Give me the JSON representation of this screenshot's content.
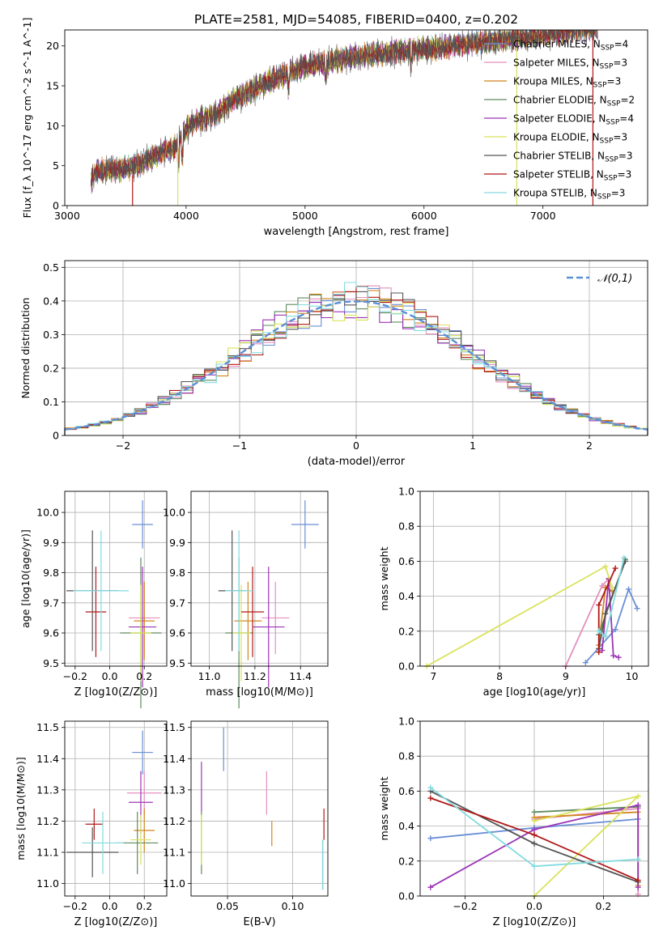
{
  "title": "PLATE=2581, MJD=54085, FIBERID=0400, z=0.202",
  "legend": [
    {
      "label": "Chabrier MILES, N$_{SSP}$=4",
      "prefix": "Chabrier MILES, N",
      "sub": "SSP",
      "suffix": "=4",
      "color": "#6a8fd6"
    },
    {
      "label": "Salpeter MILES, N$_{SSP}$=3",
      "prefix": "Salpeter MILES, N",
      "sub": "SSP",
      "suffix": "=3",
      "color": "#e48fbf"
    },
    {
      "label": "Kroupa MILES, N$_{SSP}$=3",
      "prefix": "Kroupa MILES, N",
      "sub": "SSP",
      "suffix": "=3",
      "color": "#d2851f"
    },
    {
      "label": "Chabrier ELODIE, N$_{SSP}$=2",
      "prefix": "Chabrier ELODIE, N",
      "sub": "SSP",
      "suffix": "=2",
      "color": "#5f8a5f"
    },
    {
      "label": "Salpeter ELODIE, N$_{SSP}$=4",
      "prefix": "Salpeter ELODIE, N",
      "sub": "SSP",
      "suffix": "=4",
      "color": "#9b34b5"
    },
    {
      "label": "Kroupa ELODIE, N$_{SSP}$=3",
      "prefix": "Kroupa ELODIE, N",
      "sub": "SSP",
      "suffix": "=3",
      "color": "#d9e25a"
    },
    {
      "label": "Chabrier STELIB, N$_{SSP}$=3",
      "prefix": "Chabrier STELIB, N",
      "sub": "SSP",
      "suffix": "=3",
      "color": "#555555"
    },
    {
      "label": "Salpeter STELIB, N$_{SSP}$=3",
      "prefix": "Salpeter STELIB, N",
      "sub": "SSP",
      "suffix": "=3",
      "color": "#b01717"
    },
    {
      "label": "Kroupa STELIB, N$_{SSP}$=3",
      "prefix": "Kroupa STELIB, N",
      "sub": "SSP",
      "suffix": "=3",
      "color": "#83dbe0"
    }
  ],
  "chart_data": [
    {
      "id": "spectrum",
      "type": "line",
      "xlabel": "wavelength [Angstrom, rest frame]",
      "ylabel": "Flux [f_λ 10^-17 erg cm^-2 s^-1 A^-1]",
      "xlim": [
        2980,
        7880
      ],
      "ylim": [
        0,
        22
      ],
      "xticks": [
        3000,
        4000,
        5000,
        6000,
        7000
      ],
      "yticks": [
        0,
        5,
        10,
        15,
        20
      ],
      "grid": false,
      "legend_position": "top-right",
      "continuum": [
        [
          3200,
          3.2
        ],
        [
          3250,
          4.3
        ],
        [
          3400,
          4.5
        ],
        [
          3550,
          4.8
        ],
        [
          3700,
          6.0
        ],
        [
          3800,
          6.8
        ],
        [
          3900,
          7.2
        ],
        [
          4000,
          9.5
        ],
        [
          4100,
          10.8
        ],
        [
          4200,
          11.0
        ],
        [
          4300,
          12.0
        ],
        [
          4400,
          13.2
        ],
        [
          4500,
          14.0
        ],
        [
          4600,
          14.8
        ],
        [
          4700,
          15.6
        ],
        [
          4800,
          16.2
        ],
        [
          4900,
          16.8
        ],
        [
          5000,
          17.5
        ],
        [
          5200,
          18.0
        ],
        [
          5400,
          18.6
        ],
        [
          5600,
          19.0
        ],
        [
          5800,
          19.3
        ],
        [
          6000,
          19.6
        ],
        [
          6200,
          19.9
        ],
        [
          6400,
          20.3
        ],
        [
          6600,
          20.7
        ],
        [
          6800,
          21.0
        ],
        [
          7000,
          21.3
        ],
        [
          7200,
          21.8
        ],
        [
          7450,
          22.2
        ]
      ],
      "dips": [
        [
          3550,
          "#b01717"
        ],
        [
          3930,
          "#d9e25a"
        ],
        [
          6780,
          "#d9e25a"
        ],
        [
          7420,
          "#b01717"
        ]
      ]
    },
    {
      "id": "residuals",
      "type": "histogram",
      "xlabel": "(data-model)/error",
      "ylabel": "Normed distribution",
      "xlim": [
        -2.5,
        2.5
      ],
      "ylim": [
        0,
        0.52
      ],
      "xticks": [
        -2,
        -1,
        0,
        1,
        2
      ],
      "yticks": [
        0,
        0.1,
        0.2,
        0.3,
        0.4,
        0.5
      ],
      "grid": true,
      "bins": {
        "start": -2.5,
        "width": 0.1,
        "count": 50
      },
      "reference": {
        "label": "𝒩(0,1)",
        "mean": 0,
        "sigma": 1,
        "color": "#5b8fd6"
      }
    },
    {
      "id": "age_vs_Z",
      "type": "errorbar",
      "xlabel": "Z [log10(Z/Z⊙)]",
      "ylabel": "age [log10(age/yr)]",
      "xlim": [
        -0.26,
        0.33
      ],
      "ylim": [
        9.49,
        10.07
      ],
      "xticks": [
        -0.2,
        0,
        0.2
      ],
      "xticklabels": [
        "−0.2",
        "0.0",
        "0.2"
      ],
      "yticks": [
        9.5,
        9.6,
        9.7,
        9.8,
        9.9,
        10.0
      ],
      "grid": true,
      "points": [
        {
          "x": 0.19,
          "y": 9.96,
          "xerr": 0.06,
          "yerr": 0.08,
          "color": "#6a8fd6"
        },
        {
          "x": 0.2,
          "y": 9.65,
          "xerr": 0.09,
          "yerr": 0.12,
          "color": "#e48fbf"
        },
        {
          "x": 0.2,
          "y": 9.64,
          "xerr": 0.06,
          "yerr": 0.13,
          "color": "#d2851f"
        },
        {
          "x": 0.18,
          "y": 9.6,
          "xerr": 0.12,
          "yerr": 0.25,
          "color": "#5f8a5f"
        },
        {
          "x": 0.19,
          "y": 9.62,
          "xerr": 0.08,
          "yerr": 0.2,
          "color": "#9b34b5"
        },
        {
          "x": 0.18,
          "y": 9.6,
          "xerr": 0.06,
          "yerr": 0.16,
          "color": "#d9e25a"
        },
        {
          "x": -0.1,
          "y": 9.74,
          "xerr": 0.15,
          "yerr": 0.2,
          "color": "#555555"
        },
        {
          "x": -0.08,
          "y": 9.67,
          "xerr": 0.06,
          "yerr": 0.15,
          "color": "#b01717"
        },
        {
          "x": -0.05,
          "y": 9.74,
          "xerr": 0.16,
          "yerr": 0.2,
          "color": "#83dbe0"
        }
      ]
    },
    {
      "id": "age_vs_mass",
      "type": "errorbar",
      "xlabel": "mass [log10(M/M⊙)]",
      "ylabel": "",
      "xlim": [
        10.92,
        11.52
      ],
      "ylim": [
        9.49,
        10.07
      ],
      "xticks": [
        11.0,
        11.2,
        11.4
      ],
      "xticklabels": [
        "11.0",
        "11.2",
        "11.4"
      ],
      "yticks": [
        9.5,
        9.6,
        9.7,
        9.8,
        9.9,
        10.0
      ],
      "grid": true,
      "points": [
        {
          "x": 11.42,
          "y": 9.96,
          "xerr": 0.06,
          "yerr": 0.08,
          "color": "#6a8fd6"
        },
        {
          "x": 11.29,
          "y": 9.65,
          "xerr": 0.06,
          "yerr": 0.12,
          "color": "#e48fbf"
        },
        {
          "x": 11.17,
          "y": 9.64,
          "xerr": 0.06,
          "yerr": 0.13,
          "color": "#d2851f"
        },
        {
          "x": 11.13,
          "y": 9.6,
          "xerr": 0.06,
          "yerr": 0.25,
          "color": "#5f8a5f"
        },
        {
          "x": 11.26,
          "y": 9.62,
          "xerr": 0.07,
          "yerr": 0.2,
          "color": "#9b34b5"
        },
        {
          "x": 11.14,
          "y": 9.6,
          "xerr": 0.04,
          "yerr": 0.16,
          "color": "#d9e25a"
        },
        {
          "x": 11.1,
          "y": 9.74,
          "xerr": 0.06,
          "yerr": 0.2,
          "color": "#555555"
        },
        {
          "x": 11.19,
          "y": 9.67,
          "xerr": 0.05,
          "yerr": 0.15,
          "color": "#b01717"
        },
        {
          "x": 11.13,
          "y": 9.74,
          "xerr": 0.06,
          "yerr": 0.2,
          "color": "#83dbe0"
        }
      ]
    },
    {
      "id": "weight_vs_age",
      "type": "line",
      "xlabel": "age [log10(age/yr)]",
      "ylabel": "mass weight",
      "xlim": [
        6.8,
        10.25
      ],
      "ylim": [
        0,
        1
      ],
      "xticks": [
        7,
        8,
        9,
        10
      ],
      "yticks": [
        0,
        0.2,
        0.4,
        0.6,
        0.8,
        1.0
      ],
      "grid": true,
      "series": [
        {
          "color": "#6a8fd6",
          "points": [
            [
              9.3,
              0.02
            ],
            [
              9.75,
              0.21
            ],
            [
              9.95,
              0.44
            ],
            [
              10.08,
              0.33
            ]
          ]
        },
        {
          "color": "#e48fbf",
          "points": [
            [
              9.0,
              0.0
            ],
            [
              9.55,
              0.46
            ],
            [
              9.65,
              0.5
            ]
          ]
        },
        {
          "color": "#d2851f",
          "points": [
            [
              9.5,
              0.12
            ],
            [
              9.6,
              0.45
            ],
            [
              9.7,
              0.43
            ]
          ]
        },
        {
          "color": "#5f8a5f",
          "points": [
            [
              9.5,
              0.18
            ],
            [
              9.9,
              0.61
            ]
          ]
        },
        {
          "color": "#9b34b5",
          "points": [
            [
              9.55,
              0.09
            ],
            [
              9.65,
              0.5
            ],
            [
              9.72,
              0.06
            ],
            [
              9.8,
              0.05
            ]
          ]
        },
        {
          "color": "#d9e25a",
          "points": [
            [
              6.9,
              0.0
            ],
            [
              9.6,
              0.57
            ],
            [
              9.7,
              0.45
            ]
          ]
        },
        {
          "color": "#555555",
          "points": [
            [
              9.5,
              0.1
            ],
            [
              9.6,
              0.3
            ],
            [
              9.9,
              0.6
            ]
          ]
        },
        {
          "color": "#b01717",
          "points": [
            [
              9.5,
              0.08
            ],
            [
              9.5,
              0.35
            ],
            [
              9.75,
              0.56
            ]
          ]
        },
        {
          "color": "#83dbe0",
          "points": [
            [
              9.5,
              0.2
            ],
            [
              9.6,
              0.17
            ],
            [
              9.88,
              0.62
            ]
          ]
        }
      ]
    },
    {
      "id": "mass_vs_Z",
      "type": "errorbar",
      "xlabel": "Z [log10(Z/Z⊙)]",
      "ylabel": "mass [log10(M/M⊙)]",
      "xlim": [
        -0.26,
        0.33
      ],
      "ylim": [
        10.96,
        11.52
      ],
      "xticks": [
        -0.2,
        0,
        0.2
      ],
      "xticklabels": [
        "−0.2",
        "0.0",
        "0.2"
      ],
      "yticks": [
        11.0,
        11.1,
        11.2,
        11.3,
        11.4,
        11.5
      ],
      "grid": true,
      "points": [
        {
          "x": 0.19,
          "y": 11.42,
          "xerr": 0.06,
          "yerr": 0.07,
          "color": "#6a8fd6"
        },
        {
          "x": 0.2,
          "y": 11.29,
          "xerr": 0.1,
          "yerr": 0.07,
          "color": "#e48fbf"
        },
        {
          "x": 0.2,
          "y": 11.17,
          "xerr": 0.06,
          "yerr": 0.07,
          "color": "#d2851f"
        },
        {
          "x": 0.16,
          "y": 11.13,
          "xerr": 0.12,
          "yerr": 0.1,
          "color": "#5f8a5f"
        },
        {
          "x": 0.18,
          "y": 11.26,
          "xerr": 0.07,
          "yerr": 0.1,
          "color": "#9b34b5"
        },
        {
          "x": 0.18,
          "y": 11.14,
          "xerr": 0.06,
          "yerr": 0.08,
          "color": "#d9e25a"
        },
        {
          "x": -0.1,
          "y": 11.1,
          "xerr": 0.15,
          "yerr": 0.08,
          "color": "#555555"
        },
        {
          "x": -0.09,
          "y": 11.19,
          "xerr": 0.05,
          "yerr": 0.05,
          "color": "#b01717"
        },
        {
          "x": -0.04,
          "y": 11.13,
          "xerr": 0.12,
          "yerr": 0.1,
          "color": "#83dbe0"
        }
      ]
    },
    {
      "id": "mass_vs_EBV",
      "type": "errorbar",
      "xlabel": "E(B-V)",
      "ylabel": "",
      "xlim": [
        0.022,
        0.127
      ],
      "ylim": [
        10.96,
        11.52
      ],
      "xticks": [
        0.05,
        0.1
      ],
      "xticklabels": [
        "0.05",
        "0.10"
      ],
      "yticks": [
        11.0,
        11.1,
        11.2,
        11.3,
        11.4,
        11.5
      ],
      "grid": true,
      "points": [
        {
          "x": 0.047,
          "y": 11.43,
          "xerr": 0,
          "yerr": 0.07,
          "color": "#6a8fd6"
        },
        {
          "x": 0.08,
          "y": 11.29,
          "xerr": 0,
          "yerr": 0.07,
          "color": "#e48fbf"
        },
        {
          "x": 0.084,
          "y": 11.16,
          "xerr": 0,
          "yerr": 0.04,
          "color": "#d2851f"
        },
        {
          "x": 0.03,
          "y": 11.13,
          "xerr": 0,
          "yerr": 0.1,
          "color": "#5f8a5f"
        },
        {
          "x": 0.03,
          "y": 11.31,
          "xerr": 0,
          "yerr": 0.08,
          "color": "#9b34b5"
        },
        {
          "x": 0.03,
          "y": 11.14,
          "xerr": 0,
          "yerr": 0.08,
          "color": "#d9e25a"
        },
        {
          "x": 0.123,
          "y": 11.06,
          "xerr": 0,
          "yerr": 0.08,
          "color": "#555555"
        },
        {
          "x": 0.124,
          "y": 11.19,
          "xerr": 0,
          "yerr": 0.05,
          "color": "#b01717"
        },
        {
          "x": 0.123,
          "y": 11.06,
          "xerr": 0,
          "yerr": 0.08,
          "color": "#83dbe0"
        }
      ]
    },
    {
      "id": "weight_vs_Z",
      "type": "line",
      "xlabel": "Z [log10(Z/Z⊙)]",
      "ylabel": "mass weight",
      "xlim": [
        -0.33,
        0.33
      ],
      "ylim": [
        0,
        1
      ],
      "xticks": [
        -0.2,
        0,
        0.2
      ],
      "xticklabels": [
        "−0.2",
        "0.0",
        "0.2"
      ],
      "yticks": [
        0,
        0.2,
        0.4,
        0.6,
        0.8,
        1.0
      ],
      "grid": true,
      "series": [
        {
          "color": "#6a8fd6",
          "points": [
            [
              -0.3,
              0.33
            ],
            [
              0,
              0.39
            ],
            [
              0.3,
              0.44
            ]
          ]
        },
        {
          "color": "#e48fbf",
          "points": [
            [
              0,
              0.44
            ],
            [
              0.3,
              0.5
            ],
            [
              0.3,
              0.01
            ]
          ]
        },
        {
          "color": "#d2851f",
          "points": [
            [
              0,
              0.45
            ],
            [
              0.3,
              0.48
            ],
            [
              0.3,
              0.06
            ]
          ]
        },
        {
          "color": "#5f8a5f",
          "points": [
            [
              0,
              0.48
            ],
            [
              0.3,
              0.51
            ]
          ]
        },
        {
          "color": "#9b34b5",
          "points": [
            [
              -0.3,
              0.05
            ],
            [
              0,
              0.38
            ],
            [
              0.3,
              0.52
            ],
            [
              0.3,
              0.05
            ]
          ]
        },
        {
          "color": "#d9e25a",
          "points": [
            [
              0,
              0.0
            ],
            [
              0.3,
              0.57
            ],
            [
              0,
              0.43
            ]
          ]
        },
        {
          "color": "#555555",
          "points": [
            [
              -0.3,
              0.6
            ],
            [
              0,
              0.3
            ],
            [
              0.3,
              0.08
            ]
          ]
        },
        {
          "color": "#b01717",
          "points": [
            [
              -0.3,
              0.56
            ],
            [
              0,
              0.35
            ],
            [
              0.3,
              0.09
            ]
          ]
        },
        {
          "color": "#83dbe0",
          "points": [
            [
              -0.3,
              0.62
            ],
            [
              0,
              0.17
            ],
            [
              0.3,
              0.21
            ]
          ]
        }
      ]
    }
  ]
}
